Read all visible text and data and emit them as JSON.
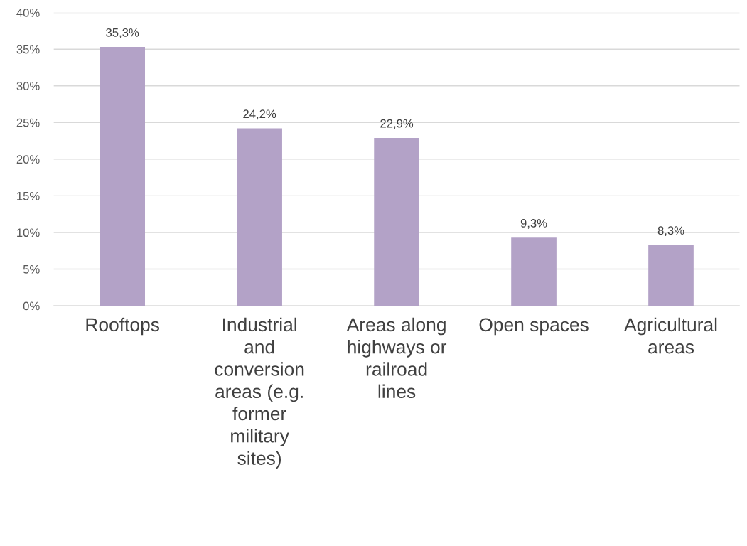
{
  "chart_data": {
    "type": "bar",
    "categories": [
      "Rooftops",
      "Industrial\nand\nconversion\nareas (e.g.\nformer\nmilitary\nsites)",
      "Areas along\nhighways or\nrailroad\nlines",
      "Open spaces",
      "Agricultural\nareas"
    ],
    "values": [
      35.3,
      24.2,
      22.9,
      9.3,
      8.3
    ],
    "value_labels": [
      "35,3%",
      "24,2%",
      "22,9%",
      "9,3%",
      "8,3%"
    ],
    "color": "#b3a2c7",
    "ylim": [
      0,
      40
    ],
    "yticks": [
      {
        "value": 0,
        "label": "0%"
      },
      {
        "value": 5,
        "label": "5%"
      },
      {
        "value": 10,
        "label": "10%"
      },
      {
        "value": 15,
        "label": "15%"
      },
      {
        "value": 20,
        "label": "20%"
      },
      {
        "value": 25,
        "label": "25%"
      },
      {
        "value": 30,
        "label": "30%"
      },
      {
        "value": 35,
        "label": "35%"
      },
      {
        "value": 40,
        "label": "40%"
      }
    ],
    "grid": "y"
  }
}
